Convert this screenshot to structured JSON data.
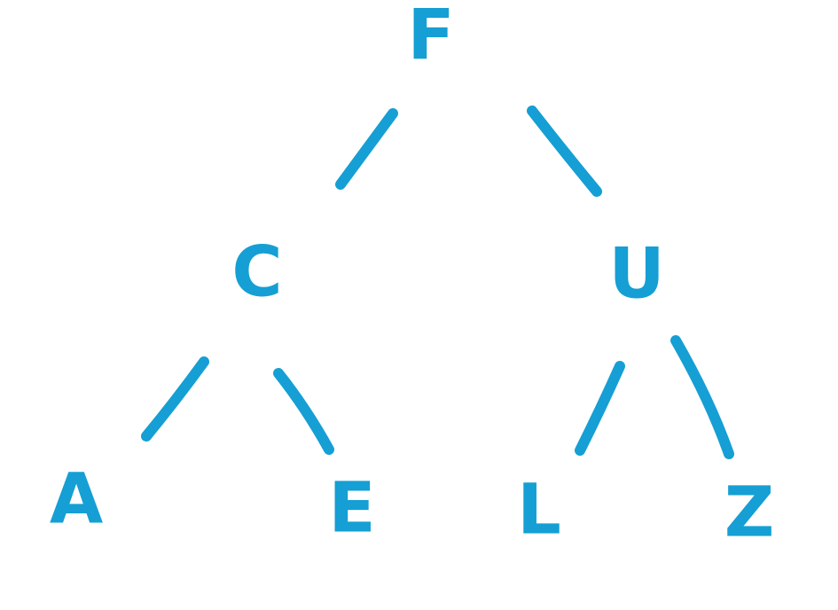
{
  "colors": {
    "ink": "#159fd4",
    "background": "#ffffff"
  },
  "tree": {
    "root": "F",
    "nodes": [
      {
        "id": "F",
        "label": "F"
      },
      {
        "id": "C",
        "label": "C"
      },
      {
        "id": "U",
        "label": "U"
      },
      {
        "id": "A",
        "label": "A"
      },
      {
        "id": "E",
        "label": "E"
      },
      {
        "id": "L",
        "label": "L"
      },
      {
        "id": "Z",
        "label": "Z"
      }
    ],
    "edges": [
      {
        "from": "F",
        "to": "C"
      },
      {
        "from": "F",
        "to": "U"
      },
      {
        "from": "C",
        "to": "A"
      },
      {
        "from": "C",
        "to": "E"
      },
      {
        "from": "U",
        "to": "L"
      },
      {
        "from": "U",
        "to": "Z"
      }
    ]
  }
}
